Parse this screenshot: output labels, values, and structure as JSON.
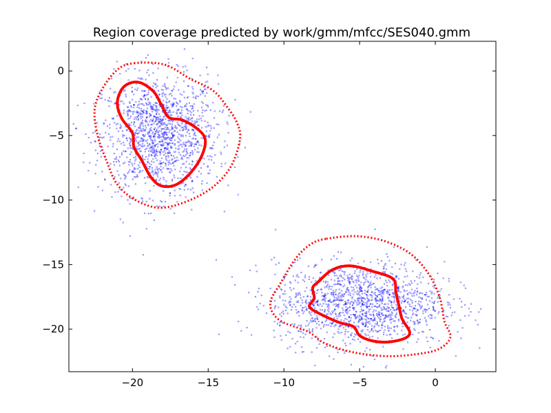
{
  "chart_data": {
    "type": "scatter",
    "title": "Region coverage predicted by work/gmm/mfcc/SES040.gmm",
    "xlabel": "",
    "ylabel": "",
    "xlim": [
      -24.2,
      4.0
    ],
    "ylim": [
      -23.3,
      2.3
    ],
    "grid": false,
    "x_ticks": [
      -20,
      -15,
      -10,
      -5,
      0
    ],
    "x_tick_labels": [
      "−20",
      "−15",
      "−10",
      "−5",
      "0"
    ],
    "y_ticks": [
      0,
      -5,
      -10,
      -15,
      -20
    ],
    "y_tick_labels": [
      "0",
      "−5",
      "−10",
      "−15",
      "−20"
    ],
    "colors": {
      "points": "#0000ff",
      "contours": "#ff0000",
      "axes": "#000000"
    },
    "clusters": [
      {
        "center": [
          -18.2,
          -5.0
        ],
        "std": [
          1.9,
          2.3
        ],
        "count": 1400
      },
      {
        "center": [
          -5.0,
          -18.0
        ],
        "std": [
          2.8,
          1.6
        ],
        "count": 1400
      }
    ],
    "contours": [
      {
        "style": "solid",
        "points": [
          [
            -19.5,
            -0.9
          ],
          [
            -18.6,
            -1.6
          ],
          [
            -18.1,
            -2.6
          ],
          [
            -17.6,
            -3.6
          ],
          [
            -16.7,
            -3.8
          ],
          [
            -15.7,
            -4.5
          ],
          [
            -15.2,
            -5.3
          ],
          [
            -15.4,
            -6.5
          ],
          [
            -16.1,
            -7.8
          ],
          [
            -17.1,
            -8.8
          ],
          [
            -18.1,
            -8.9
          ],
          [
            -18.8,
            -8.2
          ],
          [
            -19.4,
            -6.9
          ],
          [
            -19.9,
            -5.9
          ],
          [
            -20.0,
            -4.8
          ],
          [
            -20.7,
            -3.7
          ],
          [
            -21.0,
            -2.6
          ],
          [
            -20.8,
            -1.6
          ],
          [
            -20.3,
            -1.0
          ]
        ]
      },
      {
        "style": "dotted",
        "points": [
          [
            -19.9,
            0.6
          ],
          [
            -17.9,
            0.5
          ],
          [
            -16.2,
            -0.6
          ],
          [
            -14.7,
            -1.5
          ],
          [
            -13.8,
            -2.7
          ],
          [
            -13.1,
            -4.0
          ],
          [
            -12.9,
            -5.3
          ],
          [
            -13.5,
            -7.4
          ],
          [
            -14.7,
            -9.0
          ],
          [
            -16.4,
            -10.1
          ],
          [
            -18.2,
            -10.6
          ],
          [
            -19.8,
            -10.0
          ],
          [
            -21.0,
            -8.8
          ],
          [
            -21.7,
            -7.0
          ],
          [
            -22.3,
            -5.0
          ],
          [
            -22.5,
            -3.0
          ],
          [
            -22.0,
            -1.4
          ],
          [
            -21.0,
            0.1
          ]
        ]
      },
      {
        "style": "solid",
        "points": [
          [
            -7.7,
            -16.3
          ],
          [
            -6.8,
            -15.4
          ],
          [
            -5.6,
            -15.1
          ],
          [
            -4.2,
            -15.5
          ],
          [
            -2.8,
            -16.1
          ],
          [
            -2.6,
            -17.2
          ],
          [
            -2.4,
            -18.2
          ],
          [
            -2.2,
            -19.2
          ],
          [
            -1.7,
            -20.2
          ],
          [
            -2.0,
            -20.7
          ],
          [
            -3.1,
            -21.0
          ],
          [
            -4.2,
            -20.9
          ],
          [
            -5.0,
            -20.5
          ],
          [
            -5.4,
            -19.8
          ],
          [
            -6.3,
            -19.5
          ],
          [
            -7.3,
            -19.0
          ],
          [
            -8.3,
            -18.3
          ],
          [
            -8.0,
            -17.6
          ],
          [
            -8.1,
            -16.8
          ]
        ]
      },
      {
        "style": "dotted",
        "points": [
          [
            -7.2,
            -13.0
          ],
          [
            -5.2,
            -12.8
          ],
          [
            -3.3,
            -13.2
          ],
          [
            -1.6,
            -14.2
          ],
          [
            -0.4,
            -15.8
          ],
          [
            0.3,
            -17.6
          ],
          [
            0.6,
            -19.4
          ],
          [
            1.0,
            -20.6
          ],
          [
            0.3,
            -21.5
          ],
          [
            -1.0,
            -21.9
          ],
          [
            -3.1,
            -22.1
          ],
          [
            -5.4,
            -21.8
          ],
          [
            -7.3,
            -21.1
          ],
          [
            -8.4,
            -20.2
          ],
          [
            -10.3,
            -19.3
          ],
          [
            -10.9,
            -18.0
          ],
          [
            -10.2,
            -16.4
          ],
          [
            -9.2,
            -14.5
          ],
          [
            -8.2,
            -13.4
          ]
        ]
      }
    ]
  }
}
